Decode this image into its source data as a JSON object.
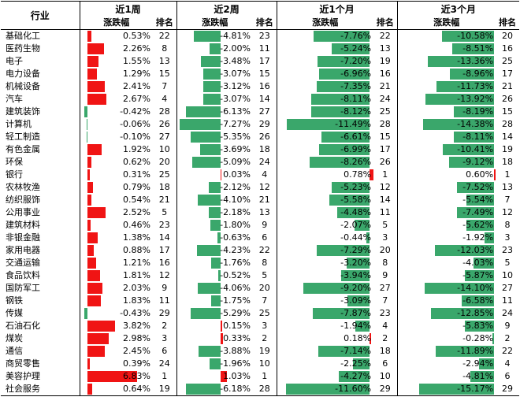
{
  "header": {
    "industry_label": "行业",
    "periods": [
      "近1周",
      "近2周",
      "近1个月",
      "近3个月"
    ],
    "change_label": "涨跌幅",
    "rank_label": "排名"
  },
  "colors": {
    "positive": "#f01414",
    "negative": "#3aa76b"
  },
  "rows": [
    {
      "name": "基础化工",
      "v": [
        0.53,
        -4.81,
        -7.76,
        -10.58
      ],
      "r": [
        22,
        23,
        22,
        20
      ]
    },
    {
      "name": "医药生物",
      "v": [
        2.26,
        -2.0,
        -5.24,
        -8.51
      ],
      "r": [
        8,
        11,
        13,
        16
      ]
    },
    {
      "name": "电子",
      "v": [
        1.55,
        -3.48,
        -7.2,
        -13.36
      ],
      "r": [
        13,
        17,
        19,
        25
      ]
    },
    {
      "name": "电力设备",
      "v": [
        1.29,
        -3.07,
        -6.96,
        -8.96
      ],
      "r": [
        15,
        15,
        16,
        17
      ]
    },
    {
      "name": "机械设备",
      "v": [
        2.41,
        -3.12,
        -7.35,
        -11.73
      ],
      "r": [
        7,
        16,
        21,
        21
      ]
    },
    {
      "name": "汽车",
      "v": [
        2.67,
        -3.07,
        -8.11,
        -13.92
      ],
      "r": [
        4,
        14,
        24,
        26
      ]
    },
    {
      "name": "建筑装饰",
      "v": [
        -0.42,
        -6.13,
        -8.12,
        -8.19
      ],
      "r": [
        28,
        27,
        25,
        15
      ]
    },
    {
      "name": "计算机",
      "v": [
        -0.06,
        -7.27,
        -11.49,
        -14.38
      ],
      "r": [
        26,
        29,
        28,
        28
      ]
    },
    {
      "name": "轻工制造",
      "v": [
        -0.1,
        -5.35,
        -6.61,
        -8.11
      ],
      "r": [
        27,
        26,
        15,
        14
      ]
    },
    {
      "name": "有色金属",
      "v": [
        1.92,
        -3.69,
        -6.99,
        -10.41
      ],
      "r": [
        10,
        18,
        17,
        19
      ]
    },
    {
      "name": "环保",
      "v": [
        0.62,
        -5.09,
        -8.26,
        -9.12
      ],
      "r": [
        20,
        24,
        26,
        18
      ]
    },
    {
      "name": "银行",
      "v": [
        0.31,
        0.03,
        0.78,
        0.6
      ],
      "r": [
        25,
        4,
        1,
        1
      ]
    },
    {
      "name": "农林牧渔",
      "v": [
        0.79,
        -2.12,
        -5.23,
        -7.52
      ],
      "r": [
        18,
        12,
        12,
        13
      ]
    },
    {
      "name": "纺织服饰",
      "v": [
        0.54,
        -4.1,
        -5.58,
        -5.54
      ],
      "r": [
        21,
        21,
        14,
        7
      ]
    },
    {
      "name": "公用事业",
      "v": [
        2.52,
        -2.18,
        -4.48,
        -7.49
      ],
      "r": [
        5,
        13,
        11,
        12
      ]
    },
    {
      "name": "建筑材料",
      "v": [
        0.46,
        -1.8,
        -2.07,
        -5.62
      ],
      "r": [
        23,
        9,
        5,
        8
      ]
    },
    {
      "name": "非银金融",
      "v": [
        1.38,
        -0.63,
        -0.44,
        -1.92
      ],
      "r": [
        14,
        6,
        3,
        3
      ]
    },
    {
      "name": "家用电器",
      "v": [
        0.88,
        -4.23,
        -7.29,
        -12.03
      ],
      "r": [
        17,
        22,
        20,
        23
      ]
    },
    {
      "name": "交通运输",
      "v": [
        1.21,
        -1.76,
        -3.2,
        -4.03
      ],
      "r": [
        16,
        8,
        8,
        5
      ]
    },
    {
      "name": "食品饮料",
      "v": [
        1.81,
        -0.52,
        -3.94,
        -5.87
      ],
      "r": [
        12,
        5,
        9,
        10
      ]
    },
    {
      "name": "国防军工",
      "v": [
        2.03,
        -4.06,
        -9.2,
        -14.1
      ],
      "r": [
        9,
        20,
        27,
        27
      ]
    },
    {
      "name": "钢铁",
      "v": [
        1.83,
        -1.75,
        -3.09,
        -6.58
      ],
      "r": [
        11,
        7,
        7,
        11
      ]
    },
    {
      "name": "传媒",
      "v": [
        -0.43,
        -5.29,
        -7.87,
        -12.85
      ],
      "r": [
        29,
        25,
        23,
        24
      ]
    },
    {
      "name": "石油石化",
      "v": [
        3.82,
        0.15,
        -1.94,
        -5.83
      ],
      "r": [
        2,
        3,
        4,
        9
      ]
    },
    {
      "name": "煤炭",
      "v": [
        2.98,
        0.33,
        0.18,
        -0.28
      ],
      "r": [
        3,
        2,
        2,
        2
      ]
    },
    {
      "name": "通信",
      "v": [
        2.45,
        -3.88,
        -7.14,
        -11.89
      ],
      "r": [
        6,
        19,
        18,
        22
      ]
    },
    {
      "name": "商贸零售",
      "v": [
        0.39,
        -1.96,
        -2.25,
        -2.94
      ],
      "r": [
        24,
        10,
        6,
        4
      ]
    },
    {
      "name": "美容护理",
      "v": [
        6.83,
        1.03,
        -4.27,
        -4.81
      ],
      "r": [
        1,
        1,
        10,
        6
      ]
    },
    {
      "name": "社会服务",
      "v": [
        0.64,
        -6.18,
        -11.6,
        -15.17
      ],
      "r": [
        19,
        28,
        29,
        29
      ]
    }
  ]
}
